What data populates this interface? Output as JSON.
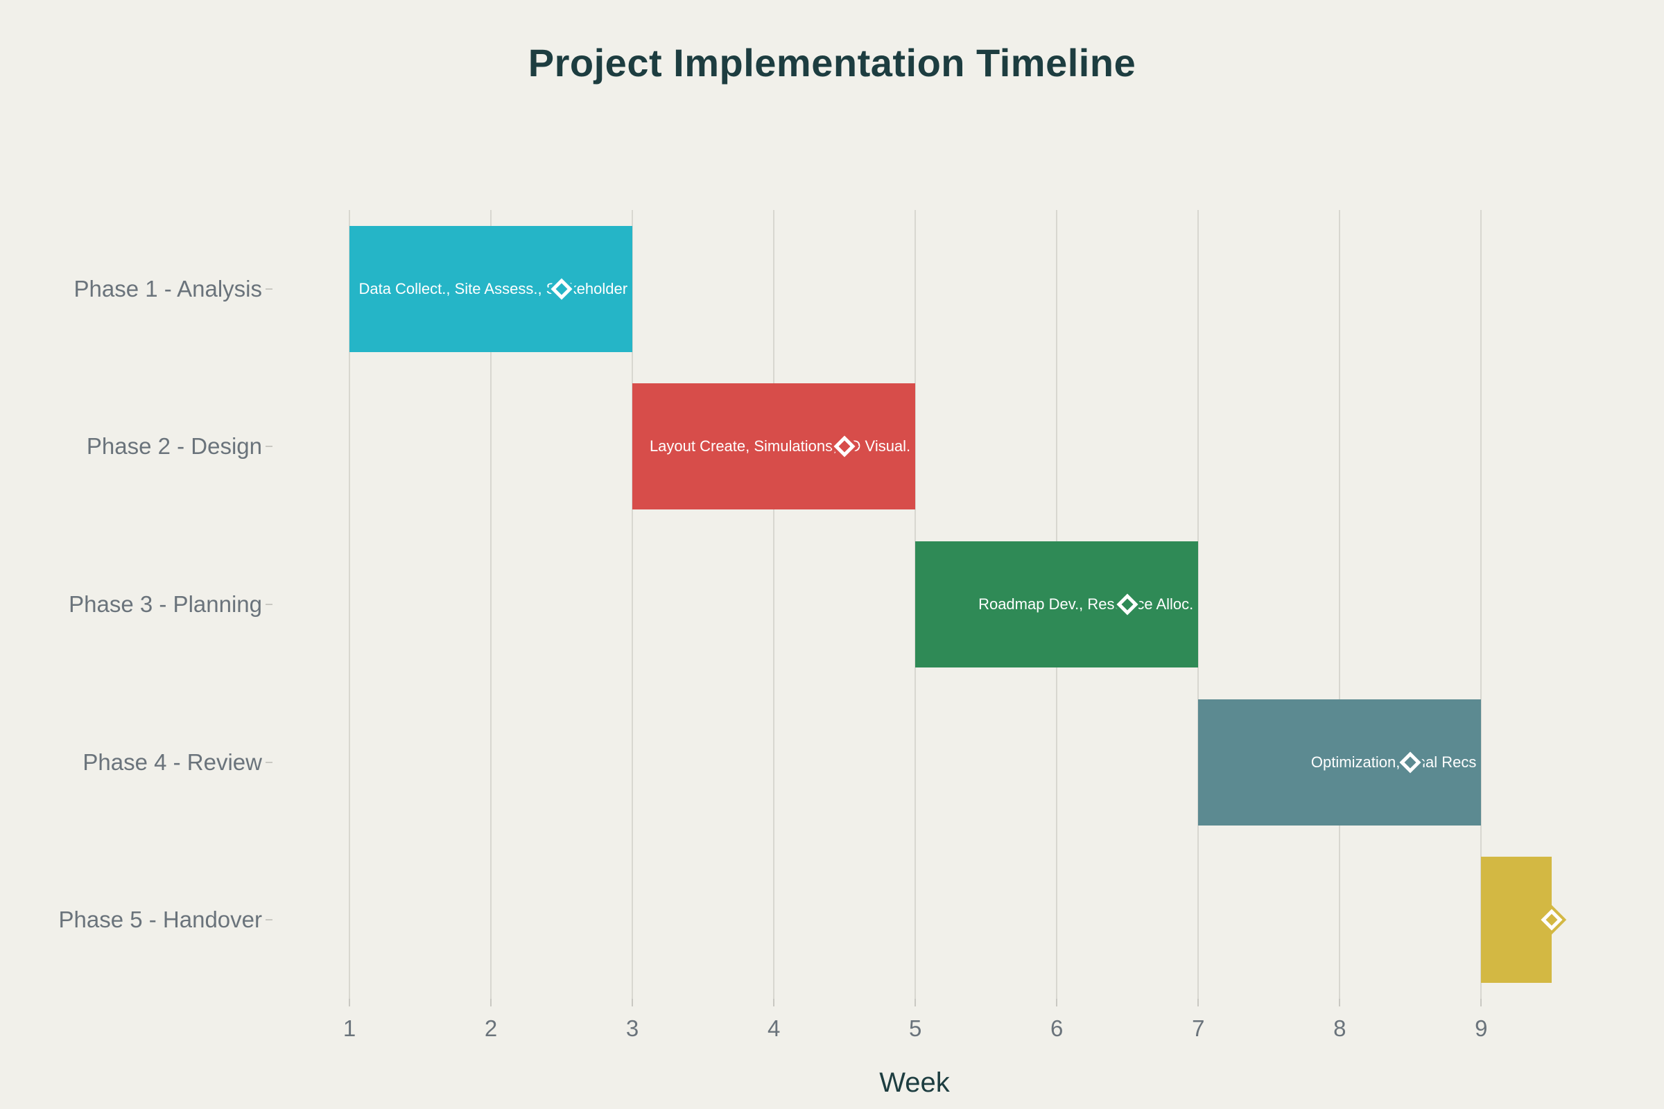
{
  "title": "Project Implementation Timeline",
  "chart_data": {
    "type": "bar",
    "subtype": "gantt-horizontal",
    "title": "Project Implementation Timeline",
    "xlabel": "Week",
    "ylabel": "",
    "x_ticks": [
      1,
      2,
      3,
      4,
      5,
      6,
      7,
      8,
      9
    ],
    "xlim": [
      0.5,
      9.9
    ],
    "grid": true,
    "legend": false,
    "background_color": "#f1f0ea",
    "title_color": "#1d3d40",
    "tick_label_color": "#6a737b",
    "gridline_color": "#d8d7d0",
    "bar_text_color": "#ffffff",
    "milestone_marker": "diamond-white-ring",
    "categories": [
      "Phase 1 - Analysis",
      "Phase 2 - Design",
      "Phase 3 - Planning",
      "Phase 4 - Review",
      "Phase 5 - Handover"
    ],
    "phases": [
      {
        "name": "Phase 1 - Analysis",
        "start_week": 1,
        "end_week": 3,
        "milestone_week": 2.5,
        "bar_label": "Data Collect., Site Assess., Stakeholder",
        "color": "#25b5c7"
      },
      {
        "name": "Phase 2 - Design",
        "start_week": 3,
        "end_week": 5,
        "milestone_week": 4.5,
        "bar_label": "Layout Create, Simulations, 3D Visual.",
        "color": "#d74d4a"
      },
      {
        "name": "Phase 3 - Planning",
        "start_week": 5,
        "end_week": 7,
        "milestone_week": 6.5,
        "bar_label": "Roadmap Dev., Resource Alloc.",
        "color": "#2f8a56"
      },
      {
        "name": "Phase 4 - Review",
        "start_week": 7,
        "end_week": 9,
        "milestone_week": 8.5,
        "bar_label": "Optimization, Final Recs",
        "color": "#5c8a91"
      },
      {
        "name": "Phase 5 - Handover",
        "start_week": 9,
        "end_week": 9.5,
        "milestone_week": 9.5,
        "bar_label": "",
        "color": "#d3b843"
      }
    ]
  }
}
